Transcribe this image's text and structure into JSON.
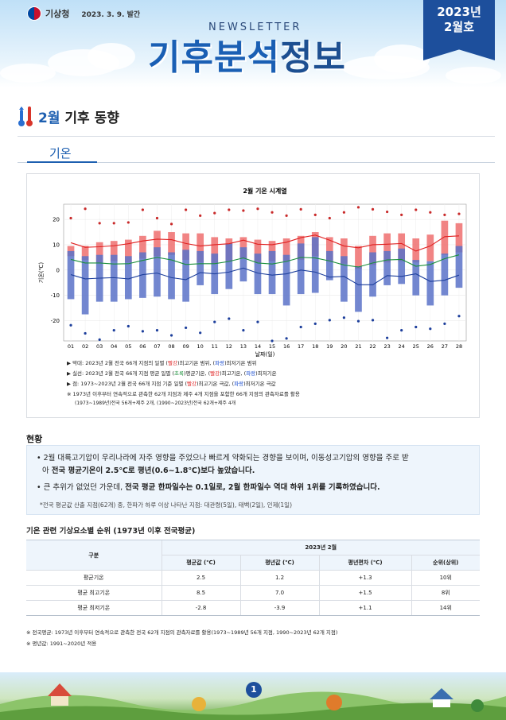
{
  "header": {
    "agency": "기상청",
    "pub_date": "2023. 3. 9. 발간",
    "newsletter": "NEWSLETTER",
    "title_a": "기후분석",
    "title_b": "정보",
    "issue_year": "2023년",
    "issue_month": "2월호"
  },
  "section": {
    "title_month": "2월",
    "title_rest": " 기후 동향",
    "tab": "기온"
  },
  "chart_data": {
    "type": "bar",
    "title": "2월 기온 시계열",
    "xlabel": "날짜(일)",
    "ylabel": "기온(℃)",
    "ylim": [
      -28,
      26
    ],
    "yticks": [
      -20,
      -10,
      0,
      10,
      20
    ],
    "categories": [
      "01",
      "02",
      "03",
      "04",
      "05",
      "06",
      "07",
      "08",
      "09",
      "10",
      "11",
      "12",
      "13",
      "14",
      "15",
      "16",
      "17",
      "18",
      "19",
      "20",
      "21",
      "22",
      "23",
      "24",
      "25",
      "26",
      "27",
      "28"
    ],
    "record_max": [
      20.5,
      24.2,
      18.5,
      18.5,
      18.8,
      23.8,
      20.5,
      18.2,
      23.8,
      21.5,
      22.5,
      23.8,
      23.5,
      24.2,
      22.8,
      21.5,
      24.0,
      21.8,
      20.5,
      22.8,
      24.8,
      24.0,
      23.0,
      21.8,
      23.8,
      22.8,
      21.8,
      22.2
    ],
    "record_min": [
      -21.8,
      -25.0,
      -27.5,
      -23.8,
      -22.2,
      -24.2,
      -23.8,
      -25.8,
      -22.8,
      -24.8,
      -20.5,
      -19.2,
      -23.8,
      -20.5,
      -28.0,
      -27.0,
      -22.5,
      -21.2,
      -19.8,
      -18.8,
      -20.2,
      -19.8,
      -26.8,
      -23.8,
      -22.5,
      -23.2,
      -21.2,
      -18.2
    ],
    "max_range_hi": [
      9.5,
      9.5,
      11.0,
      11.5,
      12.0,
      13.5,
      15.5,
      15.0,
      14.5,
      14.5,
      13.0,
      12.5,
      13.0,
      12.0,
      11.5,
      12.5,
      13.5,
      15.0,
      13.0,
      12.5,
      9.5,
      13.5,
      14.5,
      14.5,
      12.5,
      14.0,
      19.5,
      18.5
    ],
    "max_range_lo": [
      5.5,
      4.0,
      3.0,
      3.5,
      3.0,
      4.5,
      5.5,
      6.0,
      4.0,
      3.0,
      2.5,
      3.5,
      4.5,
      3.0,
      3.5,
      3.5,
      4.0,
      5.5,
      3.5,
      2.5,
      0.5,
      2.0,
      3.0,
      3.5,
      3.0,
      3.5,
      6.0,
      7.0
    ],
    "min_range_hi": [
      7.5,
      5.5,
      6.0,
      6.0,
      5.5,
      7.0,
      9.0,
      7.0,
      8.0,
      7.5,
      6.5,
      10.5,
      9.0,
      6.5,
      7.5,
      6.0,
      10.5,
      13.0,
      7.5,
      5.5,
      1.5,
      7.0,
      7.5,
      8.5,
      4.0,
      3.5,
      6.5,
      9.5
    ],
    "min_range_lo": [
      -11.5,
      -17.5,
      -12.5,
      -12.5,
      -11.5,
      -11.0,
      -10.5,
      -11.5,
      -12.5,
      -6.0,
      -9.5,
      -7.5,
      -4.5,
      -9.5,
      -9.5,
      -14.0,
      -9.5,
      -9.0,
      -4.0,
      -12.5,
      -16.5,
      -10.5,
      -6.0,
      -5.5,
      -10.0,
      -14.0,
      -10.0,
      -7.0
    ],
    "series": [
      {
        "name": "최고기온",
        "color": "#e02020",
        "values": [
          10.8,
          9.0,
          9.2,
          9.6,
          10.4,
          11.5,
          12.2,
          12.0,
          10.5,
          9.5,
          10.0,
          10.4,
          11.8,
          10.2,
          10.0,
          11.0,
          12.8,
          13.8,
          11.8,
          9.5,
          8.8,
          10.0,
          10.2,
          10.5,
          7.5,
          9.5,
          13.2,
          13.5
        ]
      },
      {
        "name": "평균기온",
        "color": "#1a8f3a",
        "values": [
          4.2,
          2.8,
          2.8,
          2.4,
          2.5,
          3.8,
          5.0,
          4.0,
          2.2,
          2.5,
          2.5,
          3.4,
          4.8,
          2.8,
          2.4,
          3.4,
          5.0,
          4.8,
          3.6,
          2.0,
          1.2,
          2.8,
          4.0,
          4.2,
          1.5,
          2.2,
          4.5,
          6.0
        ]
      },
      {
        "name": "최저기온",
        "color": "#1d3f9c",
        "values": [
          -1.8,
          -3.5,
          -3.2,
          -3.0,
          -3.5,
          -1.8,
          -1.2,
          -3.0,
          -3.8,
          -1.0,
          -1.5,
          -0.8,
          0.8,
          -1.2,
          -2.0,
          -1.5,
          0.0,
          -0.8,
          -2.8,
          -2.5,
          -5.8,
          -5.8,
          -2.2,
          -2.5,
          -1.5,
          -4.5,
          -4.0,
          -2.0
        ]
      }
    ]
  },
  "legend": {
    "l1_a": "▶ 막대: 2023년 2월 전국 66개 지점의 일별 (",
    "l1_r": "빨강",
    "l1_b": ")최고기온 범위, (",
    "l1_bl": "파랑",
    "l1_c": ")최저기온 범위",
    "l2_a": "▶ 실선: 2023년 2월 전국 66개 지점 평균 일별 (",
    "l2_g": "초록",
    "l2_b": ")평균기온, (",
    "l2_r": "빨강",
    "l2_c": ")최고기온, (",
    "l2_bl": "파랑",
    "l2_d": ")최저기온",
    "l3_a": "▶ 점: 1973~2023년 2월 전국 66개 지점 기준 일별 (",
    "l3_r": "빨강",
    "l3_b": ")최고기온 극값, (",
    "l3_bl": "파랑",
    "l3_c": ")최저기온 극값",
    "l4": "※ 1973년 이후부터 연속적으로 관측한 62개 지점과 제주 4개 지점을 포함한 66개 지점의 관측자료를 활용",
    "l5": "(1973~1989년)전국 56개+제주 2개, (1990~2023년)전국 62개+제주 4개"
  },
  "current": {
    "heading": "현황",
    "b1": "• 2월 대륙고기압이 우리나라에 자주 영향을 주었으나 빠르게 약화되는 경향을 보이며, 이동성고기압의 영향을 주로 받",
    "b1b_a": "아 ",
    "b1b_b": "전국 평균기온이 2.5℃로 평년(0.6~1.8℃)보다 높았습니다.",
    "b2_a": "• 큰 추위가 없었던 가운데, ",
    "b2_b": "전국 평균 한파일수는 0.1일로, 2월 한파일수 역대 하위 1위를 기록하였습니다.",
    "note": "*전국 평균값 산출 지점(62개) 중, 한파가 하루 이상 나타난 지점: 대관령(5일), 태백(2일), 인제(1일)"
  },
  "table": {
    "title": "기온 관련 기상요소별 순위 (1973년 이후 전국평균)",
    "h_group": "구분",
    "h_period": "2023년 2월",
    "h_cols": [
      "평균값 (℃)",
      "평년값 (℃)",
      "평년편차 (℃)",
      "순위(상위)"
    ],
    "rows": [
      [
        "평균기온",
        "2.5",
        "1.2",
        "+1.3",
        "10위"
      ],
      [
        "평균 최고기온",
        "8.5",
        "7.0",
        "+1.5",
        "8위"
      ],
      [
        "평균 최저기온",
        "-2.8",
        "-3.9",
        "+1.1",
        "14위"
      ]
    ],
    "note1": "※ 전국평균: 1973년 이후부터 연속적으로 관측한 전국 62개 지점의 관측자료를 활용(1973~1989년 56개 지점, 1990~2023년 62개 지점)",
    "note2": "※ 평년값: 1991~2020년 적용"
  },
  "footer": {
    "page": "1"
  }
}
